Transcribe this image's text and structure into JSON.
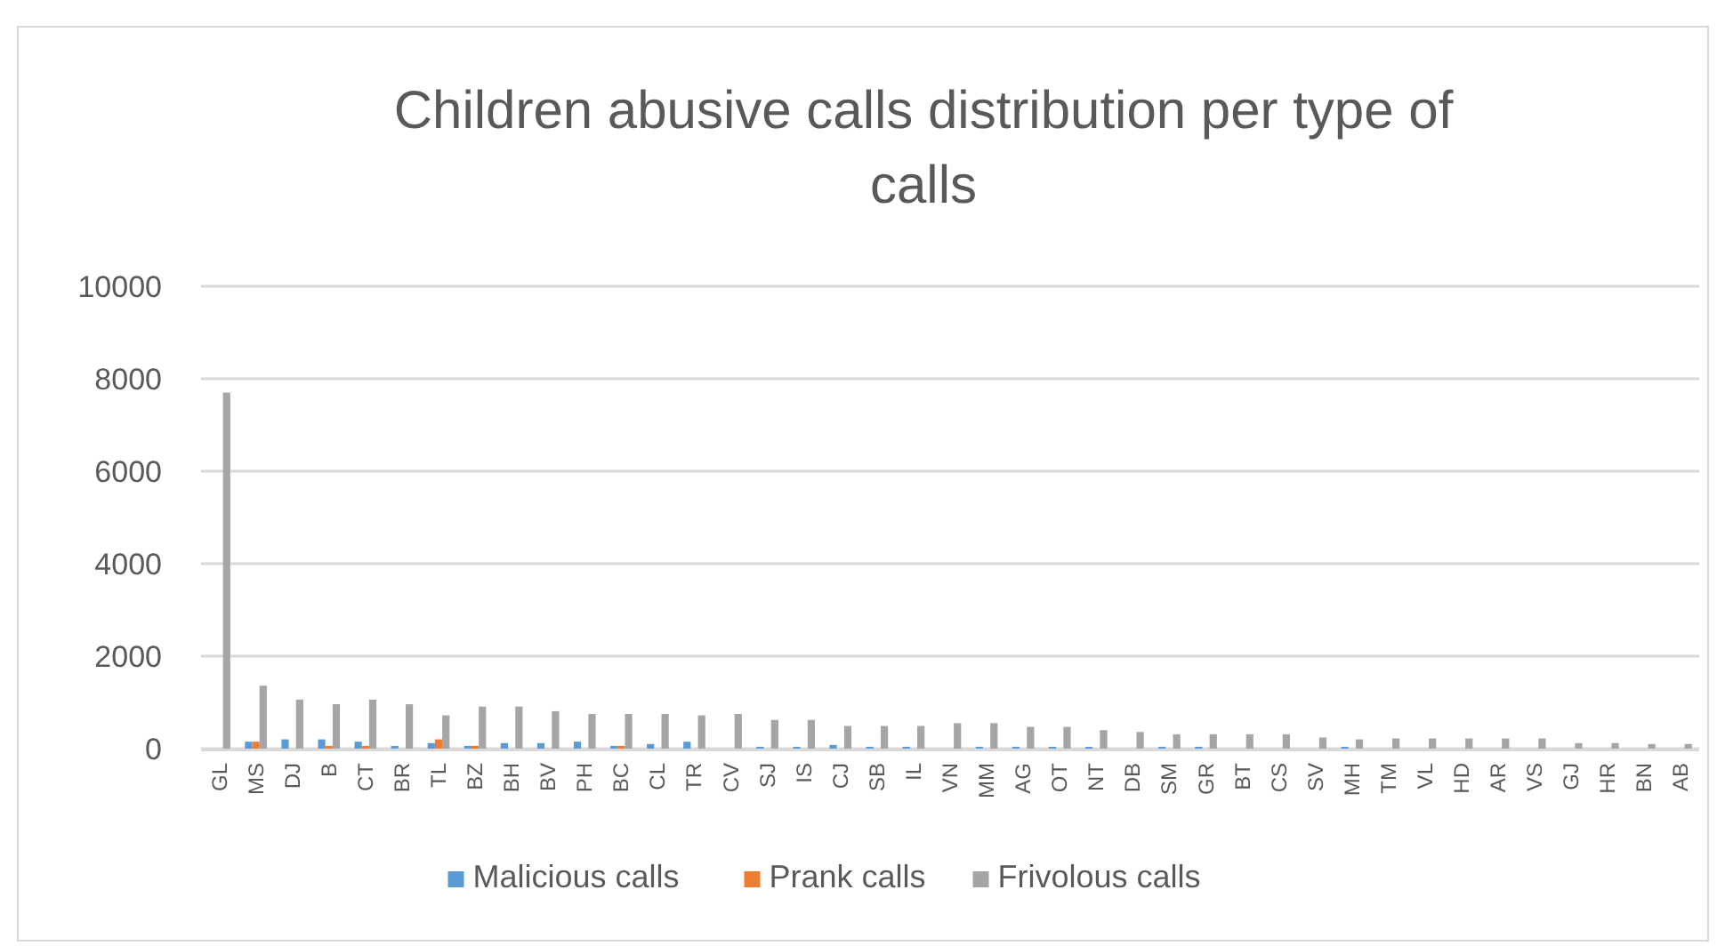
{
  "chart_data": {
    "type": "bar",
    "title": "Children abusive calls distribution per type of calls",
    "categories": [
      "GL",
      "MS",
      "DJ",
      "B",
      "CT",
      "BR",
      "TL",
      "BZ",
      "BH",
      "BV",
      "PH",
      "BC",
      "CL",
      "TR",
      "CV",
      "SJ",
      "IS",
      "CJ",
      "SB",
      "IL",
      "VN",
      "MM",
      "AG",
      "OT",
      "NT",
      "DB",
      "SM",
      "GR",
      "BT",
      "CS",
      "SV",
      "MH",
      "TM",
      "VL",
      "HD",
      "AR",
      "VS",
      "GJ",
      "HR",
      "BN",
      "AB"
    ],
    "series": [
      {
        "name": "Malicious calls",
        "color": "#5b9bd5",
        "values": [
          0,
          150,
          200,
          200,
          150,
          60,
          120,
          60,
          120,
          120,
          150,
          60,
          100,
          150,
          0,
          40,
          40,
          80,
          40,
          40,
          0,
          40,
          40,
          40,
          40,
          0,
          40,
          40,
          0,
          0,
          0,
          40,
          0,
          0,
          0,
          0,
          0,
          0,
          0,
          0,
          0
        ]
      },
      {
        "name": "Prank calls",
        "color": "#ed7d31",
        "values": [
          0,
          150,
          0,
          60,
          60,
          0,
          200,
          60,
          0,
          0,
          0,
          60,
          0,
          0,
          0,
          0,
          0,
          0,
          0,
          0,
          0,
          0,
          0,
          0,
          0,
          0,
          0,
          0,
          0,
          0,
          0,
          0,
          0,
          0,
          0,
          0,
          0,
          0,
          0,
          0,
          0
        ]
      },
      {
        "name": "Frivolous calls",
        "color": "#a5a5a5",
        "values": [
          7700,
          1360,
          1060,
          960,
          1060,
          960,
          720,
          910,
          910,
          810,
          750,
          750,
          750,
          720,
          750,
          620,
          620,
          490,
          490,
          490,
          550,
          550,
          470,
          470,
          400,
          360,
          310,
          310,
          310,
          310,
          240,
          200,
          220,
          220,
          220,
          220,
          220,
          120,
          120,
          100,
          100
        ]
      }
    ],
    "ylim": [
      0,
      10000
    ],
    "yticks": [
      0,
      2000,
      4000,
      6000,
      8000,
      10000
    ],
    "grid": "y",
    "legend": "bottom"
  }
}
